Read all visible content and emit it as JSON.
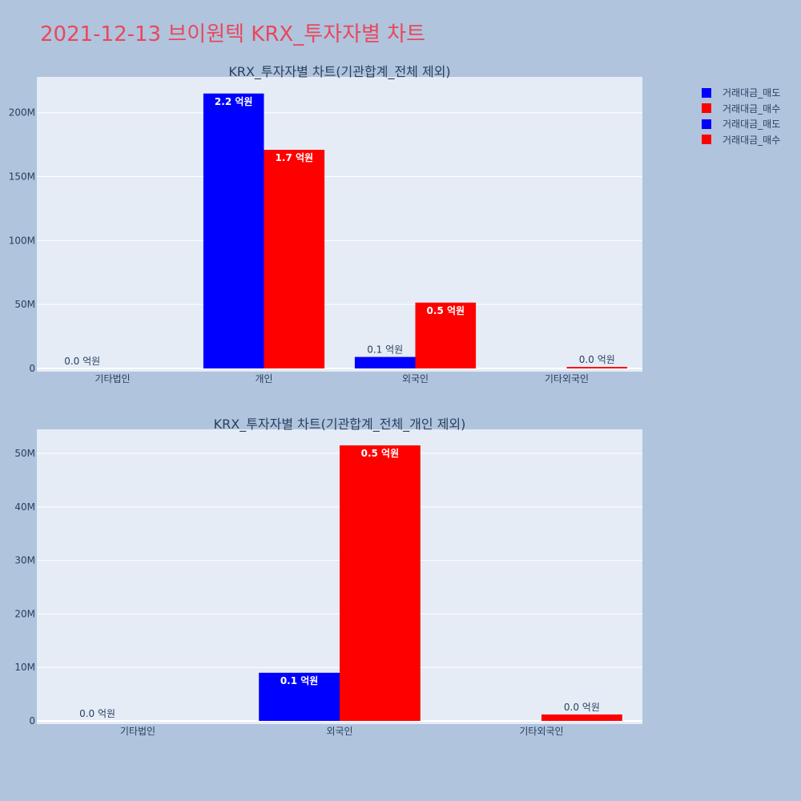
{
  "title": "2021-12-13 브이원텍 KRX_투자자별 차트",
  "legend": [
    {
      "label": "거래대금_매도",
      "color": "#0000ff"
    },
    {
      "label": "거래대금_매수",
      "color": "#ff0000"
    },
    {
      "label": "거래대금_매도",
      "color": "#0000ff"
    },
    {
      "label": "거래대금_매수",
      "color": "#ff0000"
    }
  ],
  "chart_data": [
    {
      "type": "bar",
      "title": "KRX_투자자별 차트(기관합계_전체 제외)",
      "categories": [
        "기타법인",
        "개인",
        "외국인",
        "기타외국인"
      ],
      "series": [
        {
          "name": "거래대금_매도",
          "color": "#0000ff",
          "values": [
            0,
            215000000,
            9000000,
            0
          ],
          "labels": [
            "0.0 억원",
            "2.2 억원",
            "0.1 억원",
            ""
          ]
        },
        {
          "name": "거래대금_매수",
          "color": "#ff0000",
          "values": [
            0,
            171000000,
            51500000,
            1200000
          ],
          "labels": [
            "",
            "1.7 억원",
            "0.5 억원",
            "0.0 억원"
          ]
        }
      ],
      "ylim": [
        0,
        228000000
      ],
      "yticks": [
        0,
        50000000,
        100000000,
        150000000,
        200000000
      ],
      "ytick_labels": [
        "0",
        "50M",
        "100M",
        "150M",
        "200M"
      ],
      "grid": true
    },
    {
      "type": "bar",
      "title": "KRX_투자자별 차트(기관합계_전체_개인 제외)",
      "categories": [
        "기타법인",
        "외국인",
        "기타외국인"
      ],
      "series": [
        {
          "name": "거래대금_매도",
          "color": "#0000ff",
          "values": [
            0,
            9000000,
            0
          ],
          "labels": [
            "0.0 억원",
            "0.1 억원",
            ""
          ]
        },
        {
          "name": "거래대금_매수",
          "color": "#ff0000",
          "values": [
            0,
            51500000,
            1200000
          ],
          "labels": [
            "",
            "0.5 억원",
            "0.0 억원"
          ]
        }
      ],
      "ylim": [
        0,
        54500000
      ],
      "yticks": [
        0,
        10000000,
        20000000,
        30000000,
        40000000,
        50000000
      ],
      "ytick_labels": [
        "0",
        "10M",
        "20M",
        "30M",
        "40M",
        "50M"
      ],
      "grid": true
    }
  ]
}
